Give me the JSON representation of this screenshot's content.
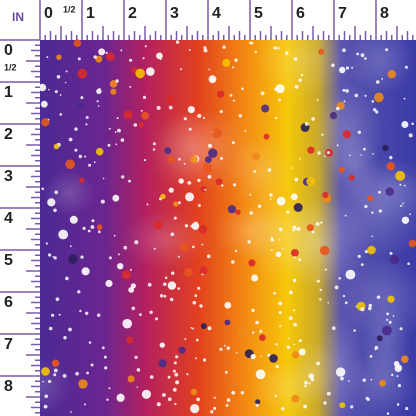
{
  "ruler": {
    "unit": "IN",
    "top": [
      "0",
      "1/2",
      "1",
      "2",
      "3",
      "4",
      "5",
      "6",
      "7",
      "8"
    ],
    "left": [
      "0",
      "1/2",
      "1",
      "2",
      "3",
      "4",
      "5",
      "6",
      "7",
      "8"
    ]
  }
}
